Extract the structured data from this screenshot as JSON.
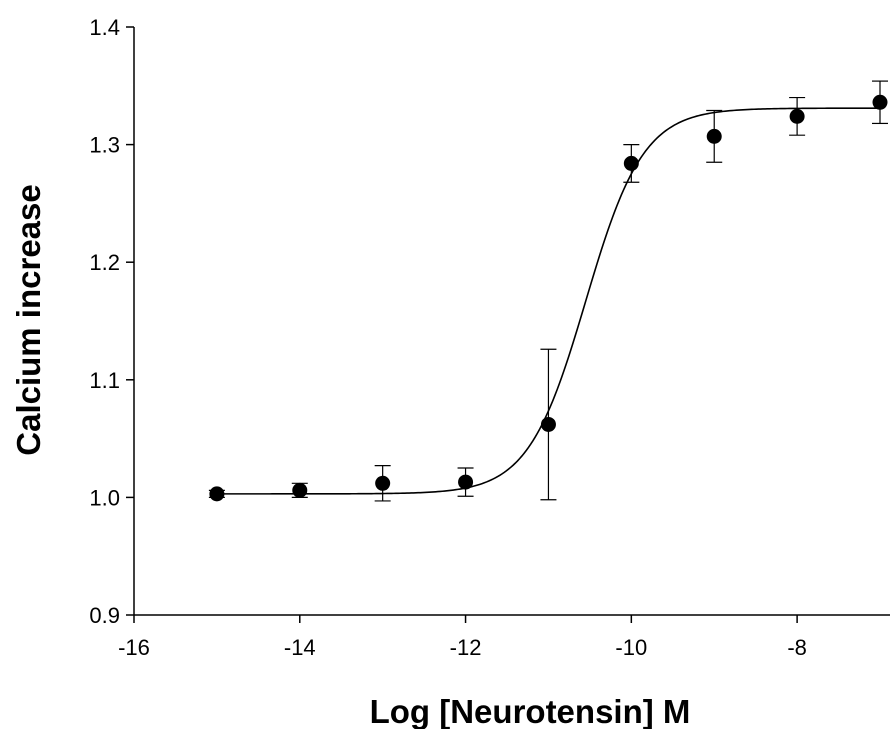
{
  "chart_data": {
    "type": "scatter",
    "title": "",
    "xlabel": "Log [Neurotensin] M",
    "ylabel": "Calcium increase",
    "xlim": [
      -16,
      -7
    ],
    "ylim": [
      0.9,
      1.4
    ],
    "xticks": [
      -16,
      -14,
      -12,
      -10,
      -8
    ],
    "yticks": [
      0.9,
      1.0,
      1.1,
      1.2,
      1.3,
      1.4
    ],
    "xtick_labels": [
      "-16",
      "-14",
      "-12",
      "-10",
      "-8"
    ],
    "ytick_labels": [
      "0.9",
      "1.0",
      "1.1",
      "1.2",
      "1.3",
      "1.4"
    ],
    "grid": false,
    "legend": "none",
    "series": [
      {
        "x": [
          -15,
          -14,
          -13,
          -12,
          -11,
          -10,
          -9,
          -8,
          -7
        ],
        "y": [
          1.003,
          1.006,
          1.012,
          1.013,
          1.062,
          1.284,
          1.307,
          1.324,
          1.336
        ],
        "error": [
          0.003,
          0.006,
          0.015,
          0.012,
          0.064,
          0.016,
          0.022,
          0.016,
          0.018
        ],
        "marker": "filled-circle",
        "color": "#000000"
      }
    ],
    "fit_curve": {
      "model": "sigmoidal dose-response",
      "bottom": 1.003,
      "top": 1.331,
      "log_ec50": -10.55,
      "hill_slope": 1.25,
      "color": "#000000"
    }
  }
}
